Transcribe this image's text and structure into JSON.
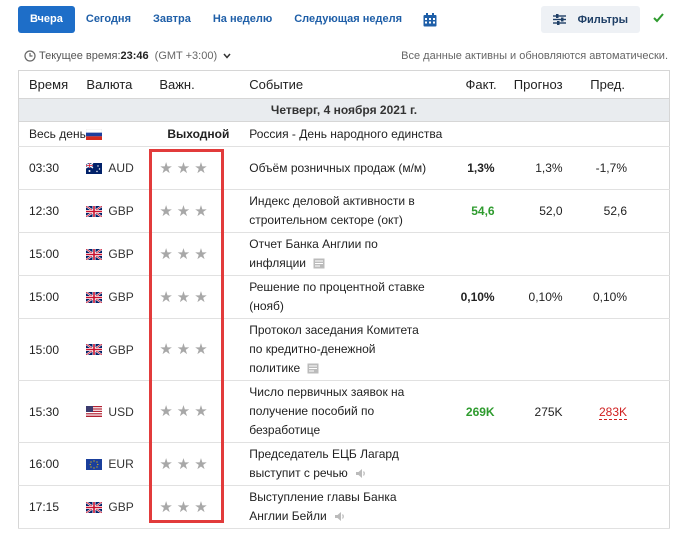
{
  "tabs": [
    {
      "label": "Вчера",
      "active": true
    },
    {
      "label": "Сегодня"
    },
    {
      "label": "Завтра"
    },
    {
      "label": "На неделю"
    },
    {
      "label": "Следующая неделя"
    }
  ],
  "filters_label": "Фильтры",
  "timebar": {
    "label": "Текущее время:",
    "time": "23:46",
    "timezone": "(GMT +3:00)",
    "note": "Все данные активны и обновляются автоматически."
  },
  "columns": {
    "time": "Время",
    "currency": "Валюта",
    "importance": "Важн.",
    "event": "Событие",
    "actual": "Факт.",
    "forecast": "Прогноз",
    "previous": "Пред."
  },
  "date_header": "Четверг, 4 ноября 2021 г.",
  "holiday_row": {
    "time": "Весь день",
    "importance": "Выходной",
    "event": "Россия - День народного единства"
  },
  "events": [
    {
      "time": "03:30",
      "currency": "AUD",
      "event": "Объём розничных продаж (м/м)",
      "actual": "1,3%",
      "actual_color": "black",
      "forecast": "1,3%",
      "previous": "-1,7%"
    },
    {
      "time": "12:30",
      "currency": "GBP",
      "event": "Индекс деловой активности в строительном секторе (окт)",
      "actual": "54,6",
      "actual_color": "green",
      "forecast": "52,0",
      "previous": "52,6"
    },
    {
      "time": "15:00",
      "currency": "GBP",
      "event": "Отчет Банка Англии по инфляции",
      "icon": "document-icon",
      "actual": "",
      "forecast": "",
      "previous": ""
    },
    {
      "time": "15:00",
      "currency": "GBP",
      "event": "Решение по процентной ставке (нояб)",
      "actual": "0,10%",
      "actual_color": "black",
      "forecast": "0,10%",
      "previous": "0,10%"
    },
    {
      "time": "15:00",
      "currency": "GBP",
      "event": "Протокол заседания Комитета по кредитно-денежной политике",
      "icon": "document-icon",
      "actual": "",
      "forecast": "",
      "previous": ""
    },
    {
      "time": "15:30",
      "currency": "USD",
      "event": "Число первичных заявок на получение пособий по безработице",
      "actual": "269K",
      "actual_color": "green",
      "forecast": "275K",
      "previous": "283K",
      "previous_color": "red"
    },
    {
      "time": "16:00",
      "currency": "EUR",
      "event": "Председатель ЕЦБ Лагард выступит с речью",
      "icon": "speaker-icon",
      "actual": "",
      "forecast": "",
      "previous": ""
    },
    {
      "time": "17:15",
      "currency": "GBP",
      "event": "Выступление главы Банка Англии Бейли",
      "icon": "speaker-icon",
      "actual": "",
      "forecast": "",
      "previous": ""
    }
  ]
}
